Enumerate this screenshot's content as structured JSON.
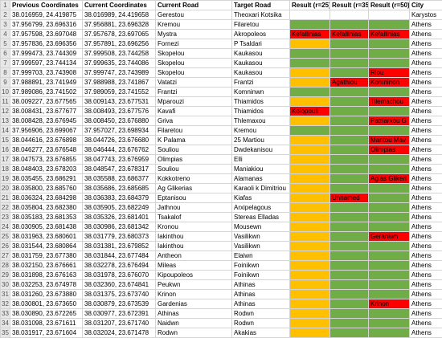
{
  "headers": {
    "row_no": "1",
    "prev": "Previous Coordinates",
    "curr": "Current Coordinates",
    "road": "Current Road",
    "target": "Target Road",
    "r25": "Result (r=25)",
    "r35": "Result (r=35)",
    "r50": "Result (r=50)",
    "city": "City"
  },
  "colors": {
    "green": "#70ad47",
    "yellow": "#ffc000",
    "red": "#ff0000",
    "header_gray": "#e7e7e7"
  },
  "rows": [
    {
      "n": "2",
      "prev": "38.016959, 24.419875",
      "curr": "38.016989, 24.419658",
      "road": "Gerestou",
      "target": "Theoxari Kotsika",
      "r25": "",
      "r25c": "",
      "r35": "",
      "r35c": "",
      "r50": "",
      "r50c": "",
      "city": "Karystos"
    },
    {
      "n": "3",
      "prev": "37.956799, 23.696316",
      "curr": "37.956881, 23.696328",
      "road": "Kremou",
      "target": "Filaretou",
      "r25": "",
      "r25c": "g",
      "r35": "",
      "r35c": "g",
      "r50": "",
      "r50c": "g",
      "city": "Athens"
    },
    {
      "n": "4",
      "prev": "37.957598, 23.697048",
      "curr": "37.957678, 23.697065",
      "road": "Mystra",
      "target": "Akropoleos",
      "r25": "Kefallinias",
      "r25c": "r",
      "r35": "Kefallinias",
      "r35c": "r",
      "r50": "Kefallinias",
      "r50c": "r",
      "city": "Athens"
    },
    {
      "n": "5",
      "prev": "37.957836, 23.696356",
      "curr": "37.957891, 23.696256",
      "road": "Fornezi",
      "target": "P Tsaldari",
      "r25": "",
      "r25c": "y",
      "r35": "",
      "r35c": "g",
      "r50": "",
      "r50c": "g",
      "city": "Athens"
    },
    {
      "n": "6",
      "prev": "37.999473, 23.744309",
      "curr": "37.999508, 23.744258",
      "road": "Skopelou",
      "target": "Kaukasou",
      "r25": "",
      "r25c": "g",
      "r35": "",
      "r35c": "g",
      "r50": "",
      "r50c": "g",
      "city": "Athens"
    },
    {
      "n": "7",
      "prev": "37.999597, 23.744134",
      "curr": "37.999635, 23.744086",
      "road": "Skopelou",
      "target": "Kaukasou",
      "r25": "",
      "r25c": "g",
      "r35": "",
      "r35c": "g",
      "r50": "",
      "r50c": "g",
      "city": "Athens"
    },
    {
      "n": "8",
      "prev": "37.999703, 23.743908",
      "curr": "37.999747, 23.743989",
      "road": "Skopelou",
      "target": "Kaukasou",
      "r25": "",
      "r25c": "y",
      "r35": "",
      "r35c": "g",
      "r50": "Riou",
      "r50c": "r",
      "city": "Athens"
    },
    {
      "n": "9",
      "prev": "37.988891, 23.741949",
      "curr": "37.988988, 23.741867",
      "road": "Vatatzi",
      "target": "Frantzi",
      "r25": "",
      "r25c": "y",
      "r35": "Agathiou",
      "r35c": "r",
      "r50": "Komninon",
      "r50c": "r",
      "city": "Athens",
      "dup": true
    },
    {
      "n": "10",
      "prev": "37.989086, 23.741502",
      "curr": "37.989059, 23.741552",
      "road": "Frantzi",
      "target": "Komninwn",
      "r25": "",
      "r25c": "g",
      "r35": "",
      "r35c": "g",
      "r50": "",
      "r50c": "g",
      "city": "Athens"
    },
    {
      "n": "11",
      "prev": "38.009227, 23.677565",
      "curr": "38.009143, 23.677531",
      "road": "Mparouzi",
      "target": "Thiamidos",
      "r25": "",
      "r25c": "y",
      "r35": "",
      "r35c": "g",
      "r50": "Tilemachou",
      "r50c": "r",
      "city": "Athens"
    },
    {
      "n": "12",
      "prev": "38.008431, 23.677677",
      "curr": "38.008493, 23.677576",
      "road": "Kavafi",
      "target": "Thiamidos",
      "r25": "Kolopouli",
      "r25c": "r",
      "r35": "",
      "r35c": "g",
      "r50": "",
      "r50c": "g",
      "city": "Athens"
    },
    {
      "n": "13",
      "prev": "38.008428, 23.676945",
      "curr": "38.008450, 23.676880",
      "road": "Griva",
      "target": "Thlemaxou",
      "r25": "",
      "r25c": "y",
      "r35": "",
      "r35c": "g",
      "r50": "Patriarxou G",
      "r50c": "r",
      "city": "Athens"
    },
    {
      "n": "14",
      "prev": "37.956906, 23.699067",
      "curr": "37.957027, 23.698934",
      "road": "Filaretou",
      "target": "Kremou",
      "r25": "",
      "r25c": "g",
      "r35": "",
      "r35c": "g",
      "r50": "",
      "r50c": "g",
      "city": "Athens"
    },
    {
      "n": "15",
      "prev": "38.044616, 23.676898",
      "curr": "38.044726, 23.676680",
      "road": "K Palama",
      "target": "25 Martiou",
      "r25": "",
      "r25c": "y",
      "r35": "",
      "r35c": "g",
      "r50": "Mantou Mav",
      "r50c": "r",
      "city": "Athens"
    },
    {
      "n": "16",
      "prev": "38.046277, 23.676548",
      "curr": "38.046444, 23.676762",
      "road": "Souliou",
      "target": "Dwdekanisou",
      "r25": "",
      "r25c": "y",
      "r35": "",
      "r35c": "g",
      "r50": "Olimpias",
      "r50c": "r",
      "city": "Athens"
    },
    {
      "n": "17",
      "prev": "38.047573, 23.676855",
      "curr": "38.047743, 23.676959",
      "road": "Olimpias",
      "target": "Elli",
      "r25": "",
      "r25c": "y",
      "r35": "",
      "r35c": "g",
      "r50": "",
      "r50c": "g",
      "city": "Athens",
      "dup": true
    },
    {
      "n": "18",
      "prev": "38.048403, 23.678203",
      "curr": "38.048547, 23.678317",
      "road": "Souliou",
      "target": "Maniakiou",
      "r25": "",
      "r25c": "y",
      "r35": "",
      "r35c": "g",
      "r50": "",
      "r50c": "g",
      "city": "Athens"
    },
    {
      "n": "19",
      "prev": "38.035455, 23.686291",
      "curr": "38.035588, 23.686377",
      "road": "Kokkotreno",
      "target": "Alamanas",
      "r25": "",
      "r25c": "y",
      "r35": "",
      "r35c": "g",
      "r50": "Agias Glikeri",
      "r50c": "r",
      "city": "Athens",
      "dup": true
    },
    {
      "n": "20",
      "prev": "38.035800, 23.685760",
      "curr": "38.035686, 23.685685",
      "road": "Ag Glikerias",
      "target": "Karaoli k Dimitriou",
      "r25": "",
      "r25c": "y",
      "r35": "",
      "r35c": "g",
      "r50": "",
      "r50c": "g",
      "city": "Athens"
    },
    {
      "n": "21",
      "prev": "38.036324, 23.684298",
      "curr": "38.036383, 23.684379",
      "road": "Eptanisou",
      "target": "Kiafas",
      "r25": "",
      "r25c": "y",
      "r35": "Unnamed",
      "r35c": "r",
      "r50": "",
      "r50c": "g",
      "city": "Athens"
    },
    {
      "n": "22",
      "prev": "38.035804, 23.682380",
      "curr": "38.035905, 23.682249",
      "road": "Jathnou",
      "target": "Arxipelagous",
      "r25": "",
      "r25c": "y",
      "r35": "",
      "r35c": "g",
      "r50": "",
      "r50c": "g",
      "city": "Athens",
      "dup": true
    },
    {
      "n": "23",
      "prev": "38.035183, 23.681353",
      "curr": "38.035326, 23.681401",
      "road": "Tsakalof",
      "target": "Stereas Elladas",
      "r25": "",
      "r25c": "y",
      "r35": "",
      "r35c": "g",
      "r50": "",
      "r50c": "g",
      "city": "Athens",
      "dup": true
    },
    {
      "n": "24",
      "prev": "38.030905, 23.681438",
      "curr": "38.030986, 23.681342",
      "road": "Kronou",
      "target": "Mousewn",
      "r25": "",
      "r25c": "y",
      "r35": "",
      "r35c": "g",
      "r50": "",
      "r50c": "g",
      "city": "Athens"
    },
    {
      "n": "25",
      "prev": "38.031963, 23.680601",
      "curr": "38.031779, 23.680373",
      "road": "Iakinthou",
      "target": "Vasilikwn",
      "r25": "",
      "r25c": "y",
      "r35": "",
      "r35c": "g",
      "r50": "Geraniwn",
      "r50c": "r",
      "city": "Athens"
    },
    {
      "n": "26",
      "prev": "38.031544, 23.680864",
      "curr": "38.031381, 23.679852",
      "road": "Iakinthou",
      "target": "Vasilikwn",
      "r25": "",
      "r25c": "y",
      "r35": "",
      "r35c": "g",
      "r50": "",
      "r50c": "g",
      "city": "Athens"
    },
    {
      "n": "27",
      "prev": "38.031759, 23.677380",
      "curr": "38.031844, 23.677484",
      "road": "Antheon",
      "target": "Elaiwn",
      "r25": "",
      "r25c": "y",
      "r35": "",
      "r35c": "g",
      "r50": "",
      "r50c": "g",
      "city": "Athens",
      "dup": true
    },
    {
      "n": "28",
      "prev": "38.032150, 23.676661",
      "curr": "38.032278, 23.676494",
      "road": "Mileas",
      "target": "Foinikwn",
      "r25": "",
      "r25c": "y",
      "r35": "",
      "r35c": "g",
      "r50": "",
      "r50c": "g",
      "city": "Athens"
    },
    {
      "n": "29",
      "prev": "38.031898, 23.676163",
      "curr": "38.031978, 23.676070",
      "road": "Kipoupoleos",
      "target": "Foinikwn",
      "r25": "",
      "r25c": "y",
      "r35": "",
      "r35c": "g",
      "r50": "",
      "r50c": "g",
      "city": "Athens"
    },
    {
      "n": "30",
      "prev": "38.032253, 23.674978",
      "curr": "38.032360, 23.674841",
      "road": "Peukwn",
      "target": "Athinas",
      "r25": "",
      "r25c": "y",
      "r35": "",
      "r35c": "g",
      "r50": "",
      "r50c": "g",
      "city": "Athens"
    },
    {
      "n": "31",
      "prev": "38.031260, 23.673880",
      "curr": "38.031375, 23.673740",
      "road": "Krinon",
      "target": "Athinas",
      "r25": "",
      "r25c": "y",
      "r35": "",
      "r35c": "g",
      "r50": "",
      "r50c": "g",
      "city": "Athens"
    },
    {
      "n": "32",
      "prev": "38.030801, 23.673650",
      "curr": "38.030879, 23.673539",
      "road": "Gardenias",
      "target": "Athinas",
      "r25": "",
      "r25c": "y",
      "r35": "",
      "r35c": "g",
      "r50": "Krinon",
      "r50c": "r",
      "city": "Athens"
    },
    {
      "n": "33",
      "prev": "38.030890, 23.672265",
      "curr": "38.030977, 23.672391",
      "road": "Athinas",
      "target": "Rodwn",
      "r25": "",
      "r25c": "y",
      "r35": "",
      "r35c": "g",
      "r50": "",
      "r50c": "g",
      "city": "Athens"
    },
    {
      "n": "34",
      "prev": "38.031098, 23.671611",
      "curr": "38.031207, 23.671740",
      "road": "Naidwn",
      "target": "Rodwn",
      "r25": "",
      "r25c": "y",
      "r35": "",
      "r35c": "g",
      "r50": "",
      "r50c": "g",
      "city": "Athens"
    },
    {
      "n": "35",
      "prev": "38.031917, 23.671604",
      "curr": "38.032024, 23.671478",
      "road": "Rodwn",
      "target": "Akakias",
      "r25": "",
      "r25c": "y",
      "r35": "",
      "r35c": "g",
      "r50": "",
      "r50c": "g",
      "city": "Athens"
    }
  ]
}
